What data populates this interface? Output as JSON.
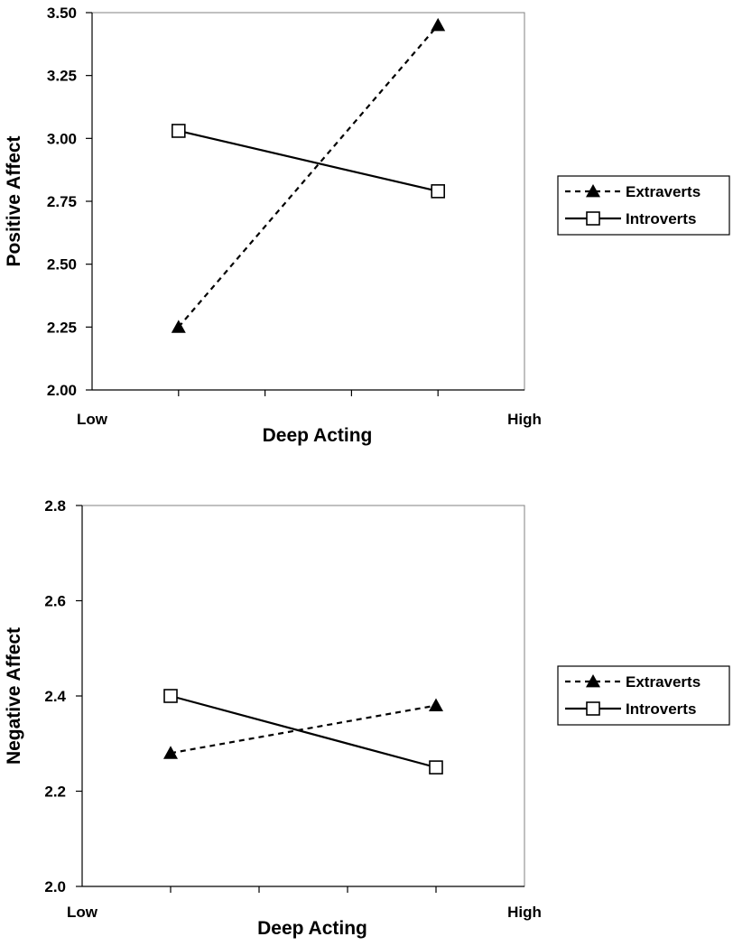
{
  "chart_data": [
    {
      "type": "line",
      "categories": [
        "",
        "",
        "",
        "",
        ""
      ],
      "x_ticks": [
        "Low",
        "High"
      ],
      "xlabel": "Deep Acting",
      "ylabel": "Positive Affect",
      "ylim": [
        2.0,
        3.5
      ],
      "y_ticks": [
        "2.00",
        "2.25",
        "2.50",
        "2.75",
        "3.00",
        "3.25",
        "3.50"
      ],
      "grid": false,
      "legend_position": "right",
      "series": [
        {
          "name": "Extraverts",
          "style": "dashed",
          "marker": "filled-triangle",
          "x": [
            1,
            4
          ],
          "values": [
            2.25,
            3.45
          ]
        },
        {
          "name": "Introverts",
          "style": "solid",
          "marker": "open-square",
          "x": [
            1,
            4
          ],
          "values": [
            3.03,
            2.79
          ]
        }
      ]
    },
    {
      "type": "line",
      "x_ticks": [
        "Low",
        "High"
      ],
      "xlabel": "Deep Acting",
      "ylabel": "Negative Affect",
      "ylim": [
        2.0,
        2.8
      ],
      "y_ticks": [
        "2.0",
        "2.2",
        "2.4",
        "2.6",
        "2.8"
      ],
      "grid": false,
      "legend_position": "right",
      "series": [
        {
          "name": "Extraverts",
          "style": "dashed",
          "marker": "filled-triangle",
          "x": [
            1,
            4
          ],
          "values": [
            2.28,
            2.38
          ]
        },
        {
          "name": "Introverts",
          "style": "solid",
          "marker": "open-square",
          "x": [
            1,
            4
          ],
          "values": [
            2.4,
            2.25
          ]
        }
      ]
    }
  ]
}
